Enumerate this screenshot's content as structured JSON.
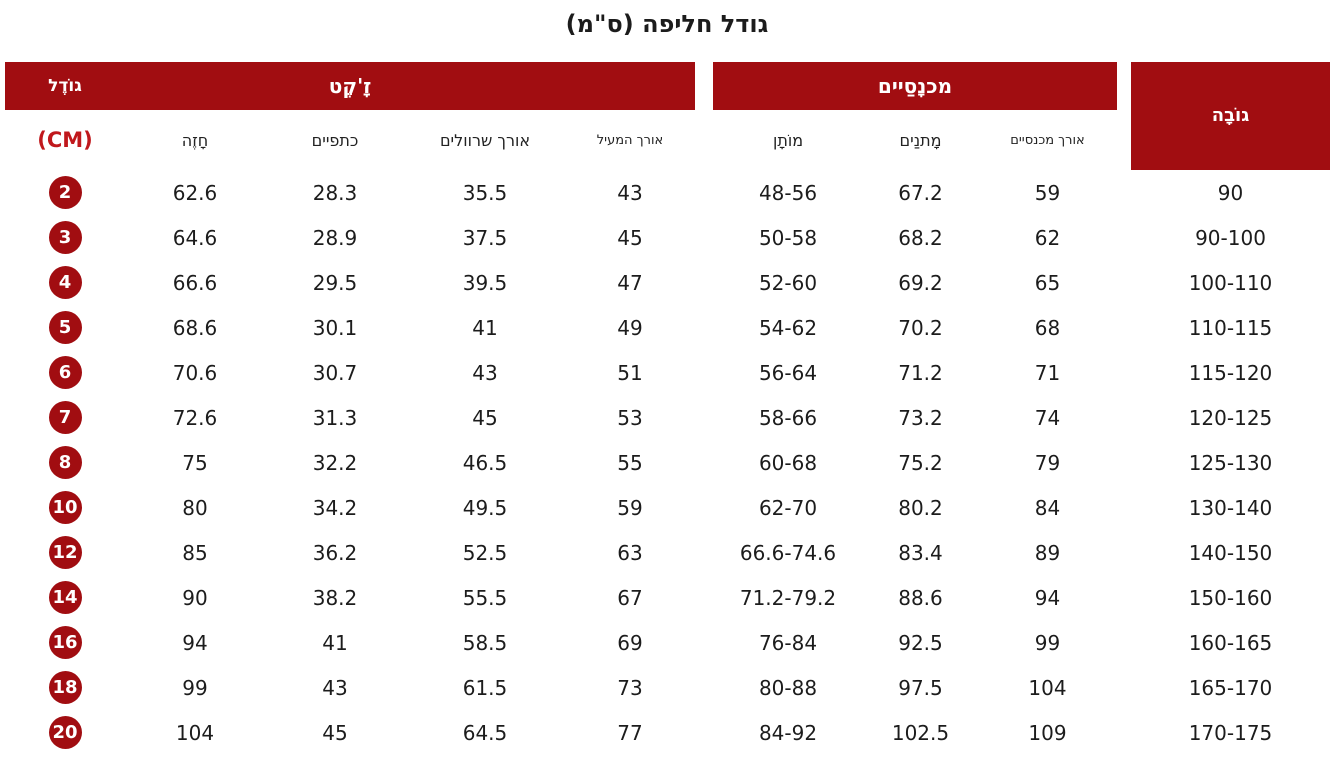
{
  "title": "גודל חליפה (ס\"מ)",
  "colors": {
    "header_red": "#A10D11",
    "circle_red": "#A10D11",
    "cm_label_red": "#C0181C",
    "text": "#1c1c1c"
  },
  "chart_data": {
    "type": "table",
    "title": "גודל חליפה (ס\"מ)",
    "group_headers": {
      "size": "גוֹדֶל",
      "jacket": "זָ'קֶט",
      "pants": "מכנָסַיים",
      "height": "גוֹבָה"
    },
    "size_unit_label": "(CM)",
    "jacket_columns": [
      "חָזֶה",
      "כתפיים",
      "אורך שרוולים",
      "אורך המעיל"
    ],
    "pants_columns": [
      "מוֹתָן",
      "מָתנַים",
      "אורך מכנסיים"
    ],
    "rows": [
      {
        "size": "2",
        "chest": "62.6",
        "shoulders": "28.3",
        "sleeve_length": "35.5",
        "coat_length": "43",
        "waist": "48-56",
        "hips": "67.2",
        "pants_length": "59",
        "height": "90"
      },
      {
        "size": "3",
        "chest": "64.6",
        "shoulders": "28.9",
        "sleeve_length": "37.5",
        "coat_length": "45",
        "waist": "50-58",
        "hips": "68.2",
        "pants_length": "62",
        "height": "90-100"
      },
      {
        "size": "4",
        "chest": "66.6",
        "shoulders": "29.5",
        "sleeve_length": "39.5",
        "coat_length": "47",
        "waist": "52-60",
        "hips": "69.2",
        "pants_length": "65",
        "height": "100-110"
      },
      {
        "size": "5",
        "chest": "68.6",
        "shoulders": "30.1",
        "sleeve_length": "41",
        "coat_length": "49",
        "waist": "54-62",
        "hips": "70.2",
        "pants_length": "68",
        "height": "110-115"
      },
      {
        "size": "6",
        "chest": "70.6",
        "shoulders": "30.7",
        "sleeve_length": "43",
        "coat_length": "51",
        "waist": "56-64",
        "hips": "71.2",
        "pants_length": "71",
        "height": "115-120"
      },
      {
        "size": "7",
        "chest": "72.6",
        "shoulders": "31.3",
        "sleeve_length": "45",
        "coat_length": "53",
        "waist": "58-66",
        "hips": "73.2",
        "pants_length": "74",
        "height": "120-125"
      },
      {
        "size": "8",
        "chest": "75",
        "shoulders": "32.2",
        "sleeve_length": "46.5",
        "coat_length": "55",
        "waist": "60-68",
        "hips": "75.2",
        "pants_length": "79",
        "height": "125-130"
      },
      {
        "size": "10",
        "chest": "80",
        "shoulders": "34.2",
        "sleeve_length": "49.5",
        "coat_length": "59",
        "waist": "62-70",
        "hips": "80.2",
        "pants_length": "84",
        "height": "130-140"
      },
      {
        "size": "12",
        "chest": "85",
        "shoulders": "36.2",
        "sleeve_length": "52.5",
        "coat_length": "63",
        "waist": "66.6-74.6",
        "hips": "83.4",
        "pants_length": "89",
        "height": "140-150"
      },
      {
        "size": "14",
        "chest": "90",
        "shoulders": "38.2",
        "sleeve_length": "55.5",
        "coat_length": "67",
        "waist": "71.2-79.2",
        "hips": "88.6",
        "pants_length": "94",
        "height": "150-160"
      },
      {
        "size": "16",
        "chest": "94",
        "shoulders": "41",
        "sleeve_length": "58.5",
        "coat_length": "69",
        "waist": "76-84",
        "hips": "92.5",
        "pants_length": "99",
        "height": "160-165"
      },
      {
        "size": "18",
        "chest": "99",
        "shoulders": "43",
        "sleeve_length": "61.5",
        "coat_length": "73",
        "waist": "80-88",
        "hips": "97.5",
        "pants_length": "104",
        "height": "165-170"
      },
      {
        "size": "20",
        "chest": "104",
        "shoulders": "45",
        "sleeve_length": "64.5",
        "coat_length": "77",
        "waist": "84-92",
        "hips": "102.5",
        "pants_length": "109",
        "height": "170-175"
      }
    ]
  }
}
